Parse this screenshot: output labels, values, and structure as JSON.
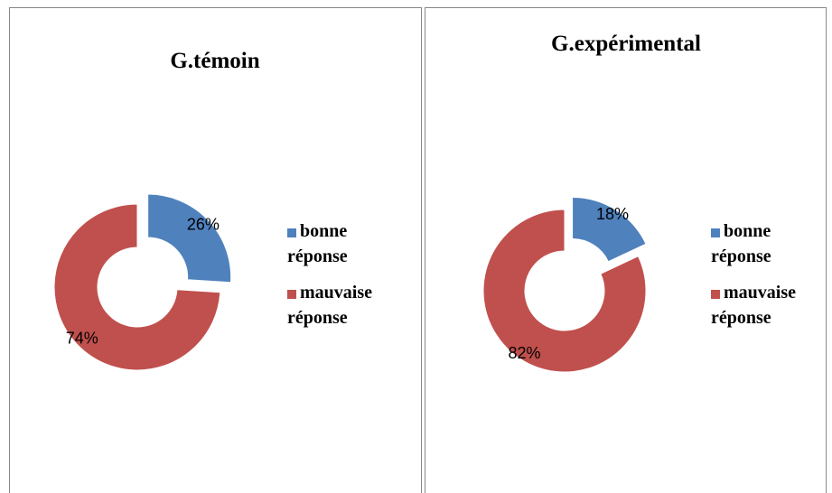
{
  "chart_data": [
    {
      "type": "donut",
      "title": "G.témoin",
      "categories": [
        "bonne réponse",
        "mauvaise réponse"
      ],
      "values": [
        26,
        74
      ],
      "value_labels": [
        "26%",
        "74%"
      ],
      "colors": [
        "#4f81bd",
        "#c0504d"
      ],
      "legend": "right",
      "explode": [
        true,
        false
      ]
    },
    {
      "type": "donut",
      "title": "G.expérimental",
      "categories": [
        "bonne réponse",
        "mauvaise réponse"
      ],
      "values": [
        18,
        82
      ],
      "value_labels": [
        "18%",
        "82%"
      ],
      "colors": [
        "#4f81bd",
        "#c0504d"
      ],
      "legend": "right",
      "explode": [
        true,
        false
      ]
    }
  ]
}
